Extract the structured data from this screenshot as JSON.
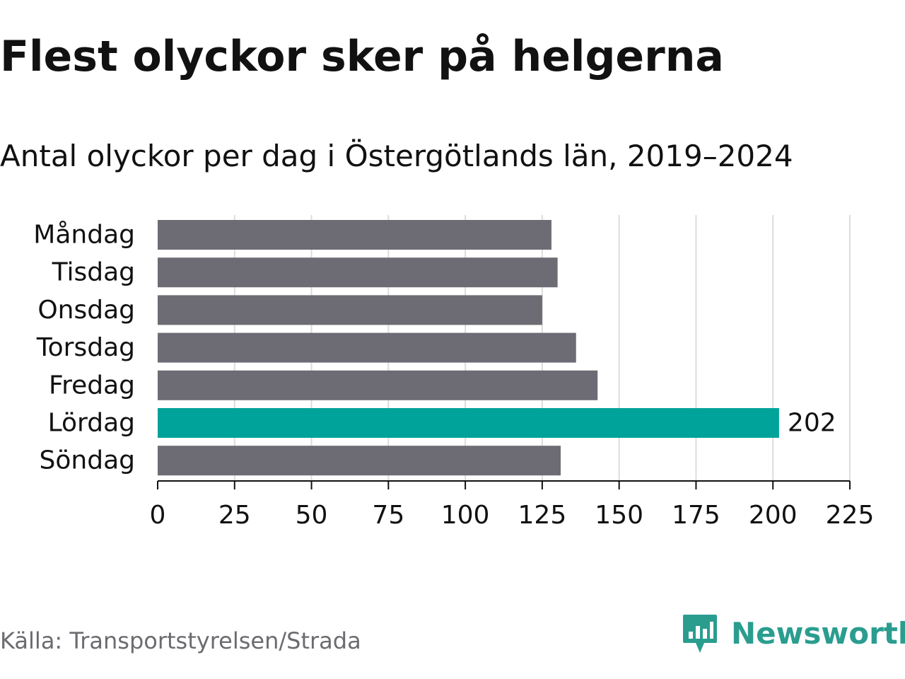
{
  "title": "Flest olyckor sker på helgerna",
  "subtitle": "Antal olyckor per dag i Östergötlands län, 2019–2024",
  "source": "Källa: Transportstyrelsen/Strada",
  "brand": {
    "name": "Newsworthy",
    "icon": "newsworthy-logo-icon",
    "color": "#2a9d8f"
  },
  "colors": {
    "bar_default": "#6d6c74",
    "bar_highlight": "#00a39a",
    "grid": "#dcdcdc",
    "axis": "#111111",
    "text": "#111111"
  },
  "chart_data": {
    "type": "bar",
    "orientation": "horizontal",
    "categories": [
      "Måndag",
      "Tisdag",
      "Onsdag",
      "Torsdag",
      "Fredag",
      "Lördag",
      "Söndag"
    ],
    "values": [
      128,
      130,
      125,
      136,
      143,
      202,
      131
    ],
    "highlight_index": 5,
    "data_labels": [
      {
        "index": 5,
        "text": "202"
      }
    ],
    "xlim": [
      0,
      225
    ],
    "x_ticks": [
      0,
      25,
      50,
      75,
      100,
      125,
      150,
      175,
      200,
      225
    ],
    "x_tick_labels": [
      "0",
      "25",
      "50",
      "75",
      "100",
      "125",
      "150",
      "175",
      "200",
      "225"
    ],
    "xlabel": "",
    "ylabel": "",
    "grid": true,
    "legend": "none"
  }
}
